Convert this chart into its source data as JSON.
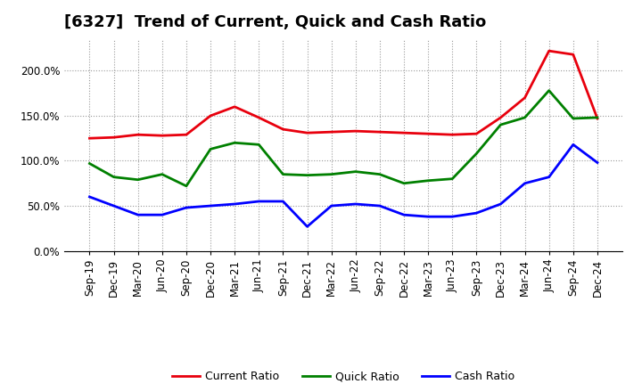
{
  "title": "[6327]  Trend of Current, Quick and Cash Ratio",
  "x_labels": [
    "Sep-19",
    "Dec-19",
    "Mar-20",
    "Jun-20",
    "Sep-20",
    "Dec-20",
    "Mar-21",
    "Jun-21",
    "Sep-21",
    "Dec-21",
    "Mar-22",
    "Jun-22",
    "Sep-22",
    "Dec-22",
    "Mar-23",
    "Jun-23",
    "Sep-23",
    "Dec-23",
    "Mar-24",
    "Jun-24",
    "Sep-24",
    "Dec-24"
  ],
  "current_ratio": [
    125,
    126,
    129,
    128,
    129,
    150,
    160,
    148,
    135,
    131,
    132,
    133,
    132,
    131,
    130,
    129,
    130,
    148,
    170,
    222,
    218,
    147
  ],
  "quick_ratio": [
    97,
    82,
    79,
    85,
    72,
    113,
    120,
    118,
    85,
    84,
    85,
    88,
    85,
    75,
    78,
    80,
    108,
    140,
    148,
    178,
    147,
    148
  ],
  "cash_ratio": [
    60,
    50,
    40,
    40,
    48,
    50,
    52,
    55,
    55,
    27,
    50,
    52,
    50,
    40,
    38,
    38,
    42,
    52,
    75,
    82,
    118,
    98
  ],
  "current_color": "#e8000d",
  "quick_color": "#008000",
  "cash_color": "#0000ff",
  "line_width": 2.0,
  "ylim": [
    0,
    235
  ],
  "yticks": [
    0,
    50,
    100,
    150,
    200
  ],
  "ytick_labels": [
    "0.0%",
    "50.0%",
    "100.0%",
    "150.0%",
    "200.0%"
  ],
  "bg_color": "#ffffff",
  "plot_bg_color": "#ffffff",
  "grid_color": "#999999",
  "title_fontsize": 13,
  "tick_fontsize": 8.5,
  "legend_fontsize": 9
}
